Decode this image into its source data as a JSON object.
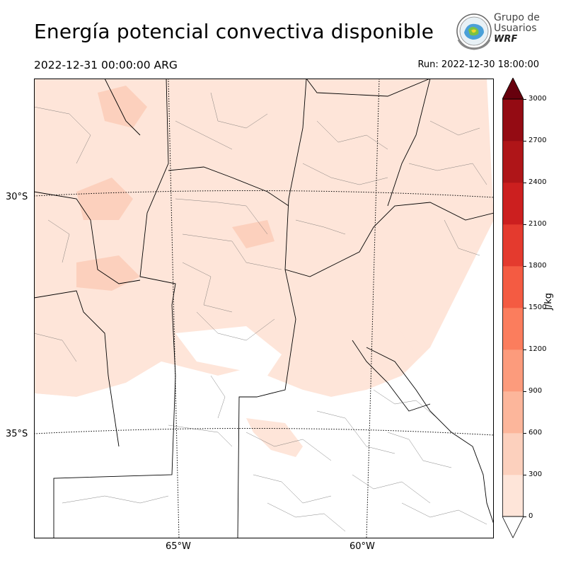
{
  "header": {
    "title": "Energía potencial convectiva disponible",
    "valid_time": "2022-12-31 00:00:00 ARG",
    "run_time": "Run: 2022-12-30 18:00:00"
  },
  "logo": {
    "line1": "Grupo de",
    "line2": "Usuarios",
    "line3": "WRF"
  },
  "map": {
    "lat_labels": [
      "30°S",
      "35°S"
    ],
    "lon_labels": [
      "65°W",
      "60°W"
    ]
  },
  "colorbar": {
    "unit": "J/kg",
    "ticks": [
      "0",
      "300",
      "600",
      "900",
      "1200",
      "1500",
      "1800",
      "2100",
      "2400",
      "2700",
      "3000"
    ],
    "colors": [
      "#fee5d9",
      "#fcd0bd",
      "#fcb69b",
      "#fc9b7c",
      "#fb7d5d",
      "#f45b42",
      "#e43a2e",
      "#cc1f1f",
      "#af1518",
      "#940b13"
    ],
    "over_color": "#67000d",
    "under_color": "#ffffff"
  }
}
